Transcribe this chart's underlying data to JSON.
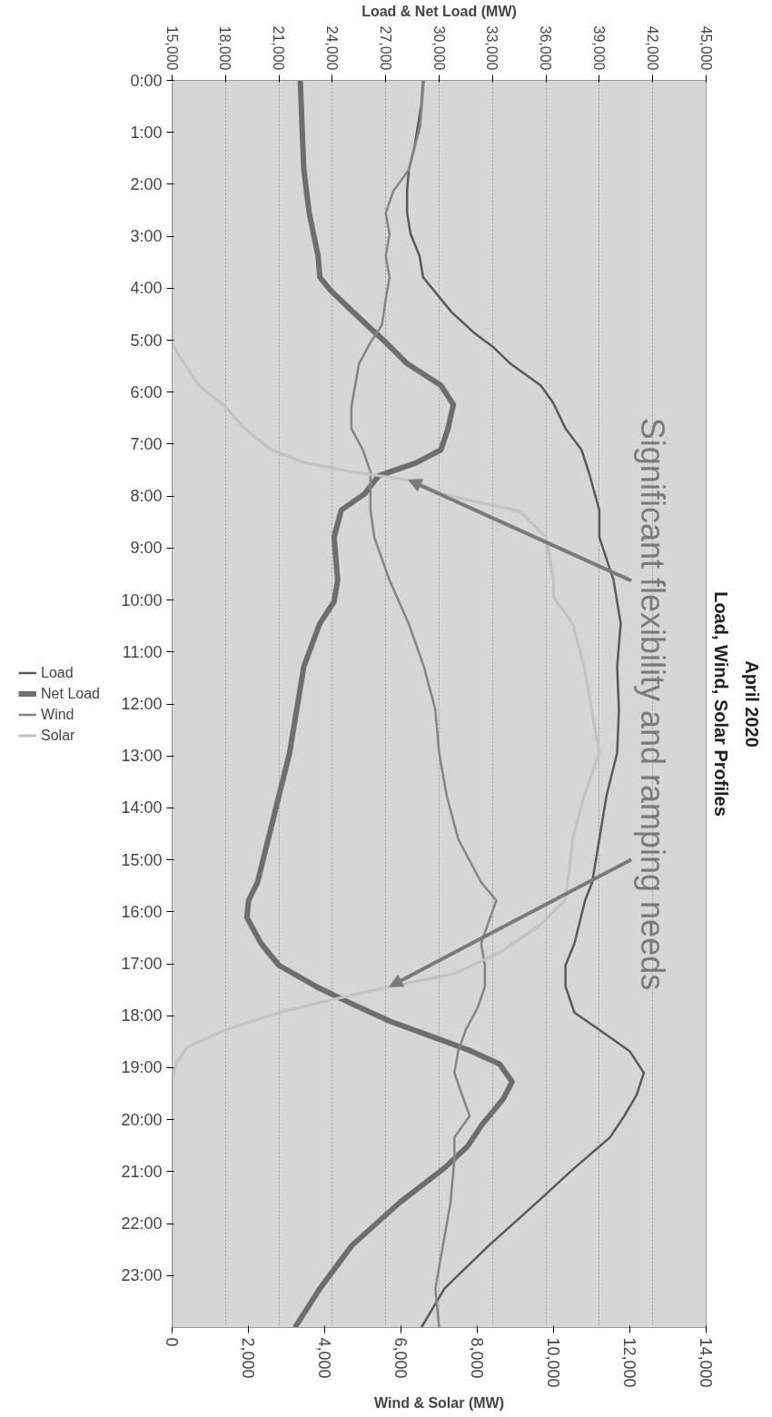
{
  "chart_data": {
    "type": "line",
    "orientation": "horizontal",
    "title": "Load, Wind, Solar Profiles",
    "subtitle": "April 2020",
    "xlabel": "Wind & Solar (MW)",
    "x2label": "Load & Net Load (MW)",
    "xlim": [
      0,
      14000
    ],
    "xticks": [
      0,
      {
        "value": 2000,
        "label": "2,000"
      },
      {
        "value": 4000,
        "label": "4,000"
      },
      {
        "value": 6000,
        "label": "6,000"
      },
      {
        "value": 8000,
        "label": "8,000"
      },
      {
        "value": 10000,
        "label": "10,000"
      },
      {
        "value": 12000,
        "label": "12,000"
      },
      {
        "value": 14000,
        "label": "14,000"
      }
    ],
    "x2lim": [
      15000,
      45000
    ],
    "x2ticks": [
      {
        "value": 15000,
        "label": "15,000"
      },
      {
        "value": 18000,
        "label": "18,000"
      },
      {
        "value": 21000,
        "label": "21,000"
      },
      {
        "value": 24000,
        "label": "24,000"
      },
      {
        "value": 27000,
        "label": "27,000"
      },
      {
        "value": 30000,
        "label": "30,000"
      },
      {
        "value": 33000,
        "label": "33,000"
      },
      {
        "value": 36000,
        "label": "36,000"
      },
      {
        "value": 39000,
        "label": "39,000"
      },
      {
        "value": 42000,
        "label": "42,000"
      },
      {
        "value": 45000,
        "label": "45,000"
      }
    ],
    "ylim": [
      24,
      0
    ],
    "yticks": [
      {
        "value": 0,
        "label": "0:00"
      },
      {
        "value": 1,
        "label": "1:00"
      },
      {
        "value": 2,
        "label": "2:00"
      },
      {
        "value": 3,
        "label": "3:00"
      },
      {
        "value": 4,
        "label": "4:00"
      },
      {
        "value": 5,
        "label": "5:00"
      },
      {
        "value": 6,
        "label": "6:00"
      },
      {
        "value": 7,
        "label": "7:00"
      },
      {
        "value": 8,
        "label": "8:00"
      },
      {
        "value": 9,
        "label": "9:00"
      },
      {
        "value": 10,
        "label": "10:00"
      },
      {
        "value": 11,
        "label": "11:00"
      },
      {
        "value": 12,
        "label": "12:00"
      },
      {
        "value": 13,
        "label": "13:00"
      },
      {
        "value": 14,
        "label": "14:00"
      },
      {
        "value": 15,
        "label": "15:00"
      },
      {
        "value": 16,
        "label": "16:00"
      },
      {
        "value": 17,
        "label": "17:00"
      },
      {
        "value": 18,
        "label": "18:00"
      },
      {
        "value": 19,
        "label": "19:00"
      },
      {
        "value": 20,
        "label": "20:00"
      },
      {
        "value": 21,
        "label": "21:00"
      },
      {
        "value": 22,
        "label": "22:00"
      },
      {
        "value": 23,
        "label": "23:00"
      }
    ],
    "grid": "x",
    "legend": "left",
    "marker": "none",
    "line_style": "solid",
    "series": [
      {
        "name": "Load",
        "color": "#5a5a5a",
        "axis": "x2",
        "x": [
          0,
          0.47,
          0.89,
          1.3,
          1.72,
          2.13,
          2.55,
          2.96,
          3.38,
          3.79,
          4.04,
          4.46,
          4.87,
          5.12,
          5.45,
          5.87,
          6.2,
          6.7,
          7.11,
          7.53,
          8.27,
          8.79,
          9.62,
          10.45,
          11.28,
          12.11,
          12.94,
          13.77,
          14.6,
          15.43,
          15.78,
          16.61,
          17.03,
          17.44,
          17.94,
          18.27,
          18.68,
          19.1,
          19.52,
          19.93,
          20.34,
          20.93,
          21.59,
          22.42,
          23.25,
          24
        ],
        "values": [
          29100,
          29000,
          28800,
          28600,
          28300,
          28200,
          28200,
          28400,
          28900,
          29100,
          29700,
          30700,
          32000,
          33000,
          34000,
          35700,
          36400,
          37100,
          38000,
          38400,
          39000,
          39000,
          39800,
          40200,
          40000,
          40100,
          40000,
          39400,
          39000,
          38600,
          38200,
          37600,
          37100,
          37100,
          37600,
          39000,
          40700,
          41500,
          41100,
          40400,
          39600,
          37600,
          35500,
          32800,
          30300,
          29000
        ]
      },
      {
        "name": "Net Load",
        "color": "#6e6e6e",
        "axis": "x2",
        "x": [
          0,
          0.89,
          1.72,
          2.55,
          3.38,
          3.79,
          4.04,
          4.37,
          4.79,
          5.04,
          5.45,
          5.87,
          6.24,
          6.7,
          7.11,
          7.36,
          7.61,
          7.96,
          8.27,
          8.79,
          9.62,
          10.03,
          10.45,
          11.28,
          12.11,
          12.94,
          13.77,
          14.6,
          15.43,
          15.78,
          16.11,
          16.61,
          17.03,
          17.44,
          17.77,
          18.1,
          18.44,
          18.68,
          18.93,
          19.27,
          19.6,
          20.1,
          20.51,
          20.93,
          21.59,
          22.42,
          23.25,
          24
        ],
        "values": [
          22200,
          22300,
          22400,
          22700,
          23200,
          23300,
          23900,
          24900,
          26200,
          27000,
          28200,
          30100,
          30800,
          30500,
          30100,
          28700,
          26600,
          25800,
          24500,
          24100,
          24300,
          24100,
          23300,
          22400,
          22000,
          21600,
          21000,
          20400,
          19800,
          19300,
          19200,
          20000,
          21000,
          23100,
          25100,
          27200,
          29900,
          31800,
          33400,
          34100,
          33600,
          32400,
          31600,
          30300,
          27800,
          25100,
          23300,
          21900
        ]
      },
      {
        "name": "Wind",
        "color": "#858585",
        "x": [
          0,
          0.89,
          1.72,
          2.13,
          2.55,
          2.96,
          3.38,
          3.79,
          4.21,
          4.71,
          5.04,
          5.45,
          5.87,
          6.28,
          6.7,
          7.11,
          7.53,
          8.27,
          8.79,
          9.62,
          10.45,
          11.28,
          12.11,
          12.94,
          13.77,
          14.6,
          15.43,
          15.78,
          16.19,
          16.61,
          17.03,
          17.44,
          17.86,
          18.27,
          18.68,
          19.1,
          19.52,
          19.93,
          20.34,
          20.76,
          21.59,
          22.42,
          23.25,
          24
        ],
        "values": [
          6600,
          6500,
          6200,
          5800,
          5600,
          5700,
          5600,
          5700,
          5600,
          5500,
          5200,
          4900,
          4800,
          4700,
          4700,
          5000,
          5200,
          5200,
          5300,
          5700,
          6200,
          6600,
          6900,
          7000,
          7200,
          7500,
          8100,
          8500,
          8300,
          8100,
          8200,
          8200,
          8000,
          7700,
          7500,
          7400,
          7600,
          7800,
          7400,
          7400,
          7300,
          7100,
          6900,
          7000
        ]
      },
      {
        "name": "Solar",
        "color": "#c2c2c2",
        "x": [
          0,
          5.04,
          5.2,
          5.54,
          5.87,
          6.28,
          6.7,
          7.11,
          7.36,
          7.53,
          7.69,
          7.96,
          8.29,
          8.79,
          9.62,
          9.95,
          10.45,
          11.28,
          12.11,
          12.94,
          13.77,
          14.6,
          15.26,
          15.78,
          16.28,
          16.78,
          17.19,
          17.44,
          17.69,
          17.94,
          18.27,
          18.6,
          18.93,
          19.27,
          24
        ],
        "values": [
          0,
          0,
          100,
          400,
          700,
          1400,
          1900,
          2600,
          3500,
          4700,
          6200,
          7100,
          9100,
          9800,
          10000,
          10000,
          10500,
          10800,
          11000,
          11200,
          10800,
          10500,
          10400,
          10300,
          9600,
          8600,
          7400,
          5700,
          4200,
          2800,
          1400,
          400,
          100,
          0,
          0
        ]
      }
    ],
    "annotations": [
      "Significant flexibility and ramping needs"
    ]
  }
}
